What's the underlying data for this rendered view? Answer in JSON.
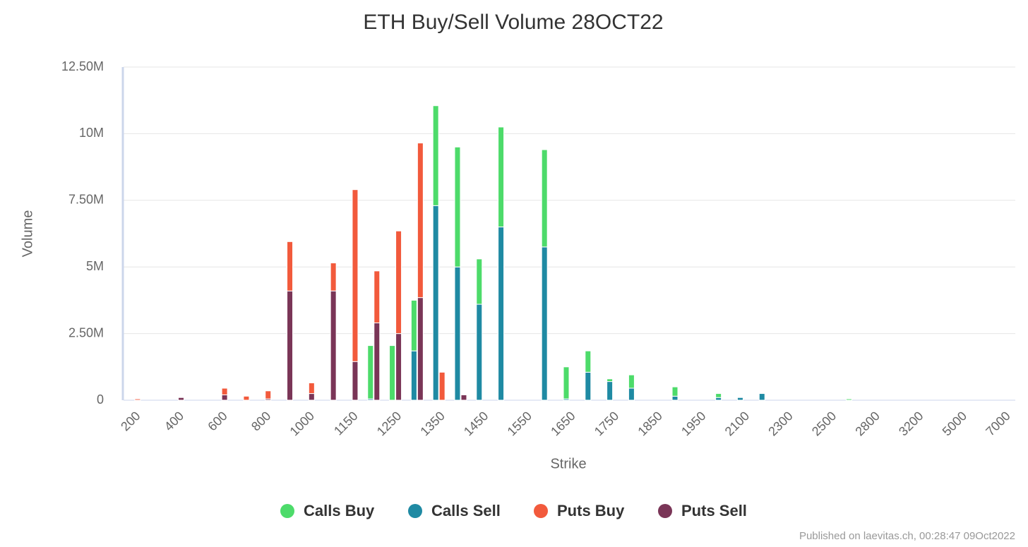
{
  "chart_data": {
    "type": "stacked-bar",
    "title": "ETH Buy/Sell Volume 28OCT22",
    "x_label": "Strike",
    "y_label": "Volume",
    "credits": "Published on laevitas.ch, 00:28:47 09Oct2022",
    "categories": [
      "200",
      null,
      "400",
      null,
      "600",
      null,
      "800",
      null,
      "1000",
      null,
      "1150",
      null,
      "1250",
      null,
      "1350",
      null,
      "1450",
      null,
      "1550",
      null,
      "1650",
      null,
      "1750",
      null,
      "1850",
      null,
      "1950",
      null,
      "2100",
      null,
      "2300",
      null,
      "2500",
      null,
      "2800",
      null,
      "3200",
      null,
      "5000",
      null,
      "7000"
    ],
    "series": [
      {
        "name": "Calls Buy",
        "color": "#4ddb6a",
        "stack": "calls",
        "values": [
          null,
          null,
          null,
          null,
          null,
          null,
          null,
          null,
          null,
          null,
          null,
          2000000,
          2050000,
          1900000,
          3750000,
          4500000,
          1700000,
          3750000,
          null,
          3650000,
          1200000,
          800000,
          100000,
          500000,
          null,
          350000,
          null,
          150000,
          null,
          null,
          null,
          null,
          null,
          50000,
          null,
          null,
          null,
          null,
          null,
          null,
          null
        ]
      },
      {
        "name": "Calls Sell",
        "color": "#1f8aa3",
        "stack": "calls",
        "values": [
          null,
          null,
          null,
          null,
          null,
          null,
          null,
          null,
          null,
          null,
          null,
          50000,
          null,
          1850000,
          7300000,
          5000000,
          3600000,
          6500000,
          null,
          5750000,
          50000,
          1050000,
          700000,
          450000,
          null,
          150000,
          null,
          100000,
          100000,
          250000,
          null,
          null,
          null,
          null,
          null,
          null,
          null,
          null,
          null,
          null,
          null
        ]
      },
      {
        "name": "Puts Buy",
        "color": "#f25a3c",
        "stack": "puts",
        "values": [
          50000,
          null,
          null,
          null,
          250000,
          150000,
          300000,
          1850000,
          400000,
          1050000,
          6450000,
          1950000,
          3850000,
          5800000,
          1050000,
          null,
          null,
          null,
          null,
          null,
          null,
          null,
          null,
          null,
          null,
          null,
          null,
          null,
          null,
          null,
          null,
          null,
          null,
          null,
          null,
          null,
          null,
          null,
          null,
          null,
          null
        ]
      },
      {
        "name": "Puts Sell",
        "color": "#7a3557",
        "stack": "puts",
        "values": [
          null,
          null,
          100000,
          null,
          200000,
          null,
          50000,
          4100000,
          250000,
          4100000,
          1450000,
          2900000,
          2500000,
          3850000,
          null,
          200000,
          null,
          null,
          null,
          null,
          null,
          null,
          null,
          null,
          null,
          null,
          null,
          null,
          null,
          null,
          null,
          null,
          null,
          null,
          null,
          null,
          null,
          null,
          null,
          null,
          null
        ]
      }
    ],
    "ylim": [
      0,
      12500000
    ],
    "yticks": [
      0,
      {
        "value": 2500000,
        "label": "2.50M"
      },
      {
        "value": 5000000,
        "label": "5M"
      },
      {
        "value": 7500000,
        "label": "7.50M"
      },
      {
        "value": 10000000,
        "label": "10M"
      },
      {
        "value": 12500000,
        "label": "12.50M"
      }
    ],
    "grid": true
  }
}
